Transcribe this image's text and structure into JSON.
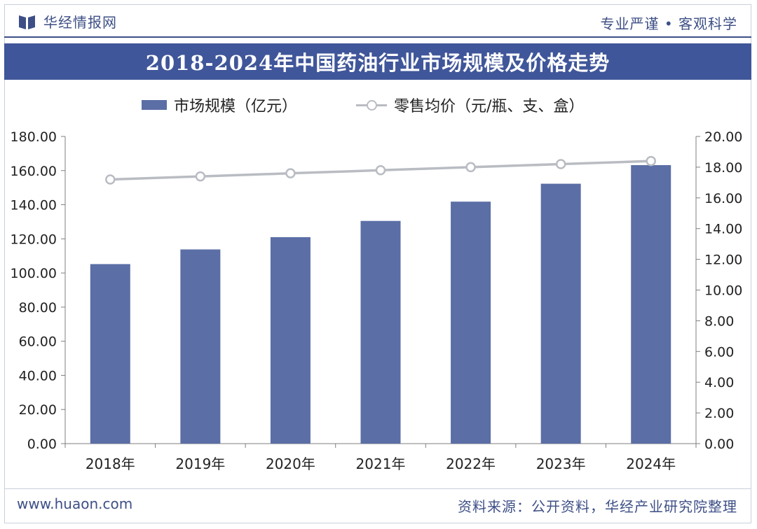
{
  "header": {
    "brand_name": "华经情报网",
    "slogan": "专业严谨 • 客观科学",
    "logo_icon": "book-logo-icon"
  },
  "colors": {
    "brand": "#3d4f86",
    "title_bg": "#40569a",
    "bar": "#5b6ea6",
    "line": "#b9bcc2"
  },
  "chart_data": {
    "type": "bar+line",
    "title": "2018-2024年中国药油行业市场规模及价格走势",
    "categories": [
      "2018年",
      "2019年",
      "2020年",
      "2021年",
      "2022年",
      "2023年",
      "2024年"
    ],
    "series": [
      {
        "name": "市场规模（亿元）",
        "type": "bar",
        "axis": "left",
        "values": [
          105.2,
          113.8,
          121.0,
          130.5,
          141.8,
          152.3,
          163.2
        ]
      },
      {
        "name": "零售均价（元/瓶、支、盒）",
        "type": "line",
        "axis": "right",
        "values": [
          17.2,
          17.4,
          17.6,
          17.8,
          18.0,
          18.2,
          18.4
        ]
      }
    ],
    "y_left": {
      "min": 0,
      "max": 180,
      "step": 20,
      "ticks": [
        "0.00",
        "20.00",
        "40.00",
        "60.00",
        "80.00",
        "100.00",
        "120.00",
        "140.00",
        "160.00",
        "180.00"
      ]
    },
    "y_right": {
      "min": 0,
      "max": 20,
      "step": 2,
      "ticks": [
        "0.00",
        "2.00",
        "4.00",
        "6.00",
        "8.00",
        "10.00",
        "12.00",
        "14.00",
        "16.00",
        "18.00",
        "20.00"
      ]
    },
    "legend_position": "top-center",
    "grid": false
  },
  "footer": {
    "website": "www.huaon.com",
    "source": "资料来源：公开资料，华经产业研究院整理"
  }
}
